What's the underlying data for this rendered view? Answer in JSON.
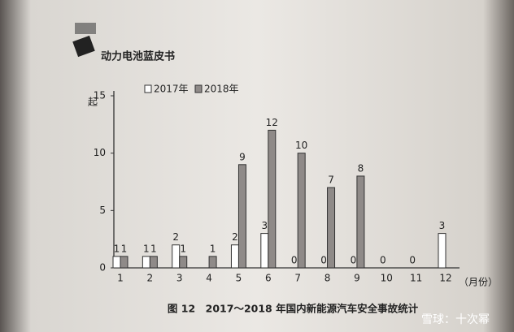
{
  "header": {
    "title": "动力电池蓝皮书"
  },
  "watermark": "雪球：十次幂",
  "chart_data": {
    "type": "bar",
    "title": "图 12　2017～2018 年国内新能源汽车安全事故统计",
    "y_label": "起",
    "x_label": "（月份）",
    "categories": [
      "1",
      "2",
      "3",
      "4",
      "5",
      "6",
      "7",
      "8",
      "9",
      "10",
      "11",
      "12"
    ],
    "series": [
      {
        "name": "2017年",
        "color": "#ffffff",
        "values": [
          1,
          1,
          2,
          null,
          2,
          3,
          0,
          0,
          0,
          0,
          0,
          3
        ]
      },
      {
        "name": "2018年",
        "color": "#8f8a88",
        "values": [
          1,
          1,
          1,
          1,
          9,
          12,
          10,
          7,
          8,
          null,
          null,
          null
        ]
      }
    ],
    "ylim": [
      0,
      15
    ],
    "yticks": [
      0,
      5,
      10,
      15
    ],
    "legend": "top"
  }
}
